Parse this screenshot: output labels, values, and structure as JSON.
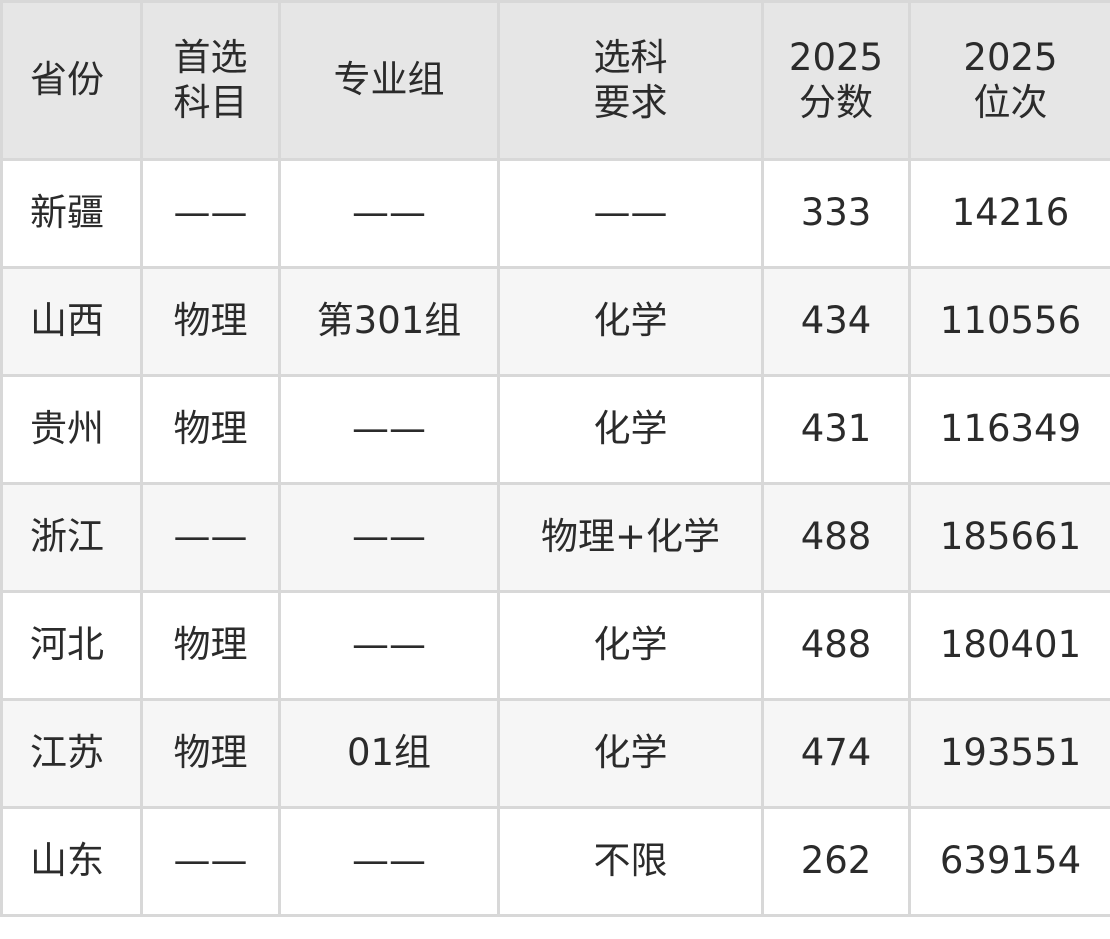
{
  "headers": [
    [
      "省份"
    ],
    [
      "首选",
      "科目"
    ],
    [
      "专业组"
    ],
    [
      "选科",
      "要求"
    ],
    [
      "2025",
      "分数"
    ],
    [
      "2025",
      "位次"
    ]
  ],
  "rows": [
    [
      "新疆",
      "——",
      "——",
      "——",
      "333",
      "14216"
    ],
    [
      "山西",
      "物理",
      "第301组",
      "化学",
      "434",
      "110556"
    ],
    [
      "贵州",
      "物理",
      "——",
      "化学",
      "431",
      "116349"
    ],
    [
      "浙江",
      "——",
      "——",
      "物理+化学",
      "488",
      "185661"
    ],
    [
      "河北",
      "物理",
      "——",
      "化学",
      "488",
      "180401"
    ],
    [
      "江苏",
      "物理",
      "01组",
      "化学",
      "474",
      "193551"
    ],
    [
      "山东",
      "——",
      "——",
      "不限",
      "262",
      "639154"
    ]
  ],
  "colors": {
    "header_bg": "#e6e6e6",
    "alt_row_bg": "#f6f6f6",
    "border": "#d8d8d8",
    "text": "#2b2b2b"
  }
}
